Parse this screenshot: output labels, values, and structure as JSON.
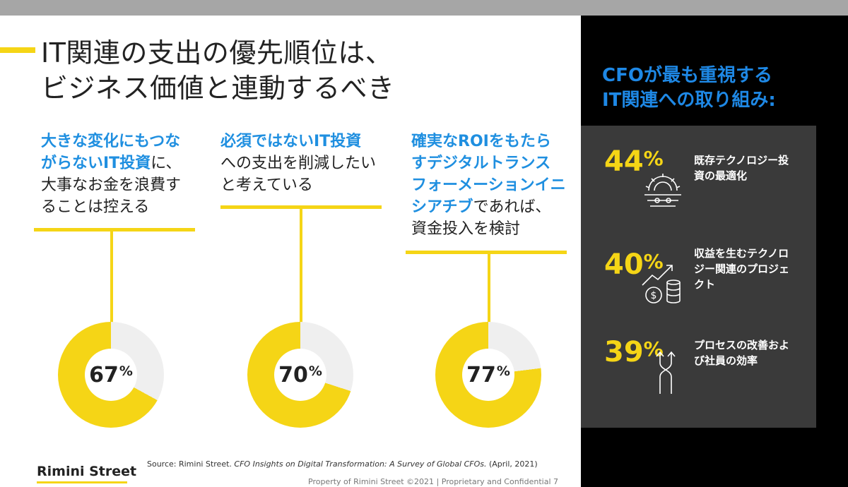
{
  "title": {
    "line1": "IT関連の支出の優先順位は、",
    "line2": "ビジネス価値と連動するべき"
  },
  "columns": [
    {
      "hl1": "大きな変化にもつな",
      "hl2": "がらないIT投資",
      "n2": "に、",
      "n3": "大事なお金を浪費す",
      "n4": "ることは控える"
    },
    {
      "hl1": "必須ではないIT投資",
      "n2": "への支出を削減したい",
      "n3": "と考えている"
    },
    {
      "hl1": "確実なROIをもたら",
      "hl2": "すデジタルトランス",
      "hl3": "フォーメーションイニ",
      "hl4": "シアチブ",
      "n4": "であれば、",
      "n5": "資金投入を検討"
    }
  ],
  "donuts": [
    {
      "value": "67",
      "fraction": 0.67,
      "unit": "%"
    },
    {
      "value": "70",
      "fraction": 0.7,
      "unit": "%"
    },
    {
      "value": "77",
      "fraction": 0.77,
      "unit": "%"
    }
  ],
  "colors": {
    "accent_yellow": "#f5d516",
    "highlight_blue": "#1f8fe0",
    "donut_gray": "#efefef",
    "panel_gray": "#3a3a3a"
  },
  "right": {
    "heading1": "CFOが最も重視する",
    "heading2": "IT関連への取り組み:",
    "stats": [
      {
        "value": "44",
        "unit": "%",
        "line1": "既存テクノロジー投",
        "line2": "資の最適化",
        "icon": "gear-icon"
      },
      {
        "value": "40",
        "unit": "%",
        "line1": "収益を生むテクノロ",
        "line2": "ジー関連のプロジェ",
        "line3": "クト",
        "icon": "revenue-growth-icon"
      },
      {
        "value": "39",
        "unit": "%",
        "line1": "プロセスの改善およ",
        "line2": "び社員の効率",
        "icon": "process-arrows-icon"
      }
    ]
  },
  "source": {
    "prefix": "Source: Rimini Street. ",
    "italic": "CFO Insights on Digital Transformation: A Survey of Global CFOs.",
    "suffix": " (April, 2021)"
  },
  "brand": "Rimini Street",
  "footer": "Property of Rimini Street ©2021  |  Proprietary and Confidential   7"
}
